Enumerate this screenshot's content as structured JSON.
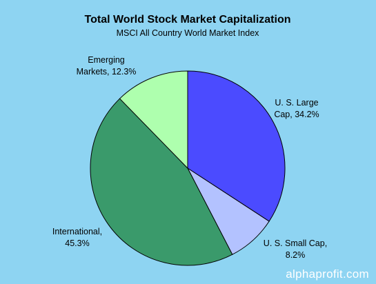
{
  "chart_data": {
    "type": "pie",
    "title": "Total World Stock Market Capitalization",
    "subtitle": "MSCI All Country World Market Index",
    "slices": [
      {
        "label_line1": "U. S. Large",
        "label_line2": "Cap, 34.2%",
        "value": 34.2,
        "color": "#4B4BFF"
      },
      {
        "label_line1": "U. S. Small Cap,",
        "label_line2": "8.2%",
        "value": 8.2,
        "color": "#B3C2FF"
      },
      {
        "label_line1": "International,",
        "label_line2": "45.3%",
        "value": 45.3,
        "color": "#3A9A6B"
      },
      {
        "label_line1": "Emerging",
        "label_line2": "Markets, 12.3%",
        "value": 12.3,
        "color": "#AEFFAE"
      }
    ],
    "start_angle_deg": 0,
    "direction": "clockwise",
    "background_color": "#8ED4F2",
    "slice_border_color": "#000000"
  },
  "watermark": "alphaprofit.com"
}
